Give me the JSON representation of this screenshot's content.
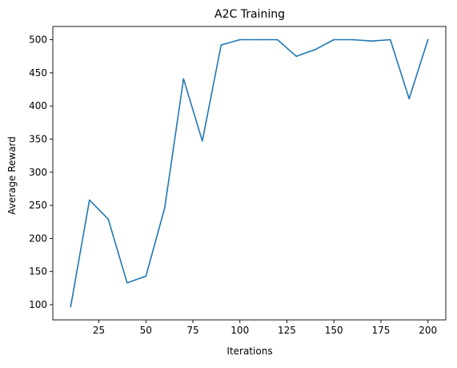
{
  "chart_data": {
    "type": "line",
    "title": "A2C Training",
    "xlabel": "Iterations",
    "ylabel": "Average Reward",
    "xlim": [
      0.5,
      209.5
    ],
    "ylim": [
      77.0,
      520.0
    ],
    "xticks": [
      25,
      50,
      75,
      100,
      125,
      150,
      175,
      200
    ],
    "yticks": [
      100,
      150,
      200,
      250,
      300,
      350,
      400,
      450,
      500
    ],
    "grid": false,
    "legend": "none",
    "series": [
      {
        "color": "#1f77b4",
        "x": [
          10,
          20,
          30,
          40,
          50,
          60,
          70,
          80,
          90,
          100,
          110,
          120,
          130,
          140,
          150,
          160,
          170,
          180,
          190,
          200
        ],
        "y": [
          97,
          258,
          229,
          133,
          143,
          246,
          441,
          347,
          492,
          500,
          500,
          500,
          475,
          485,
          500,
          500,
          498,
          500,
          411,
          500
        ]
      }
    ]
  }
}
